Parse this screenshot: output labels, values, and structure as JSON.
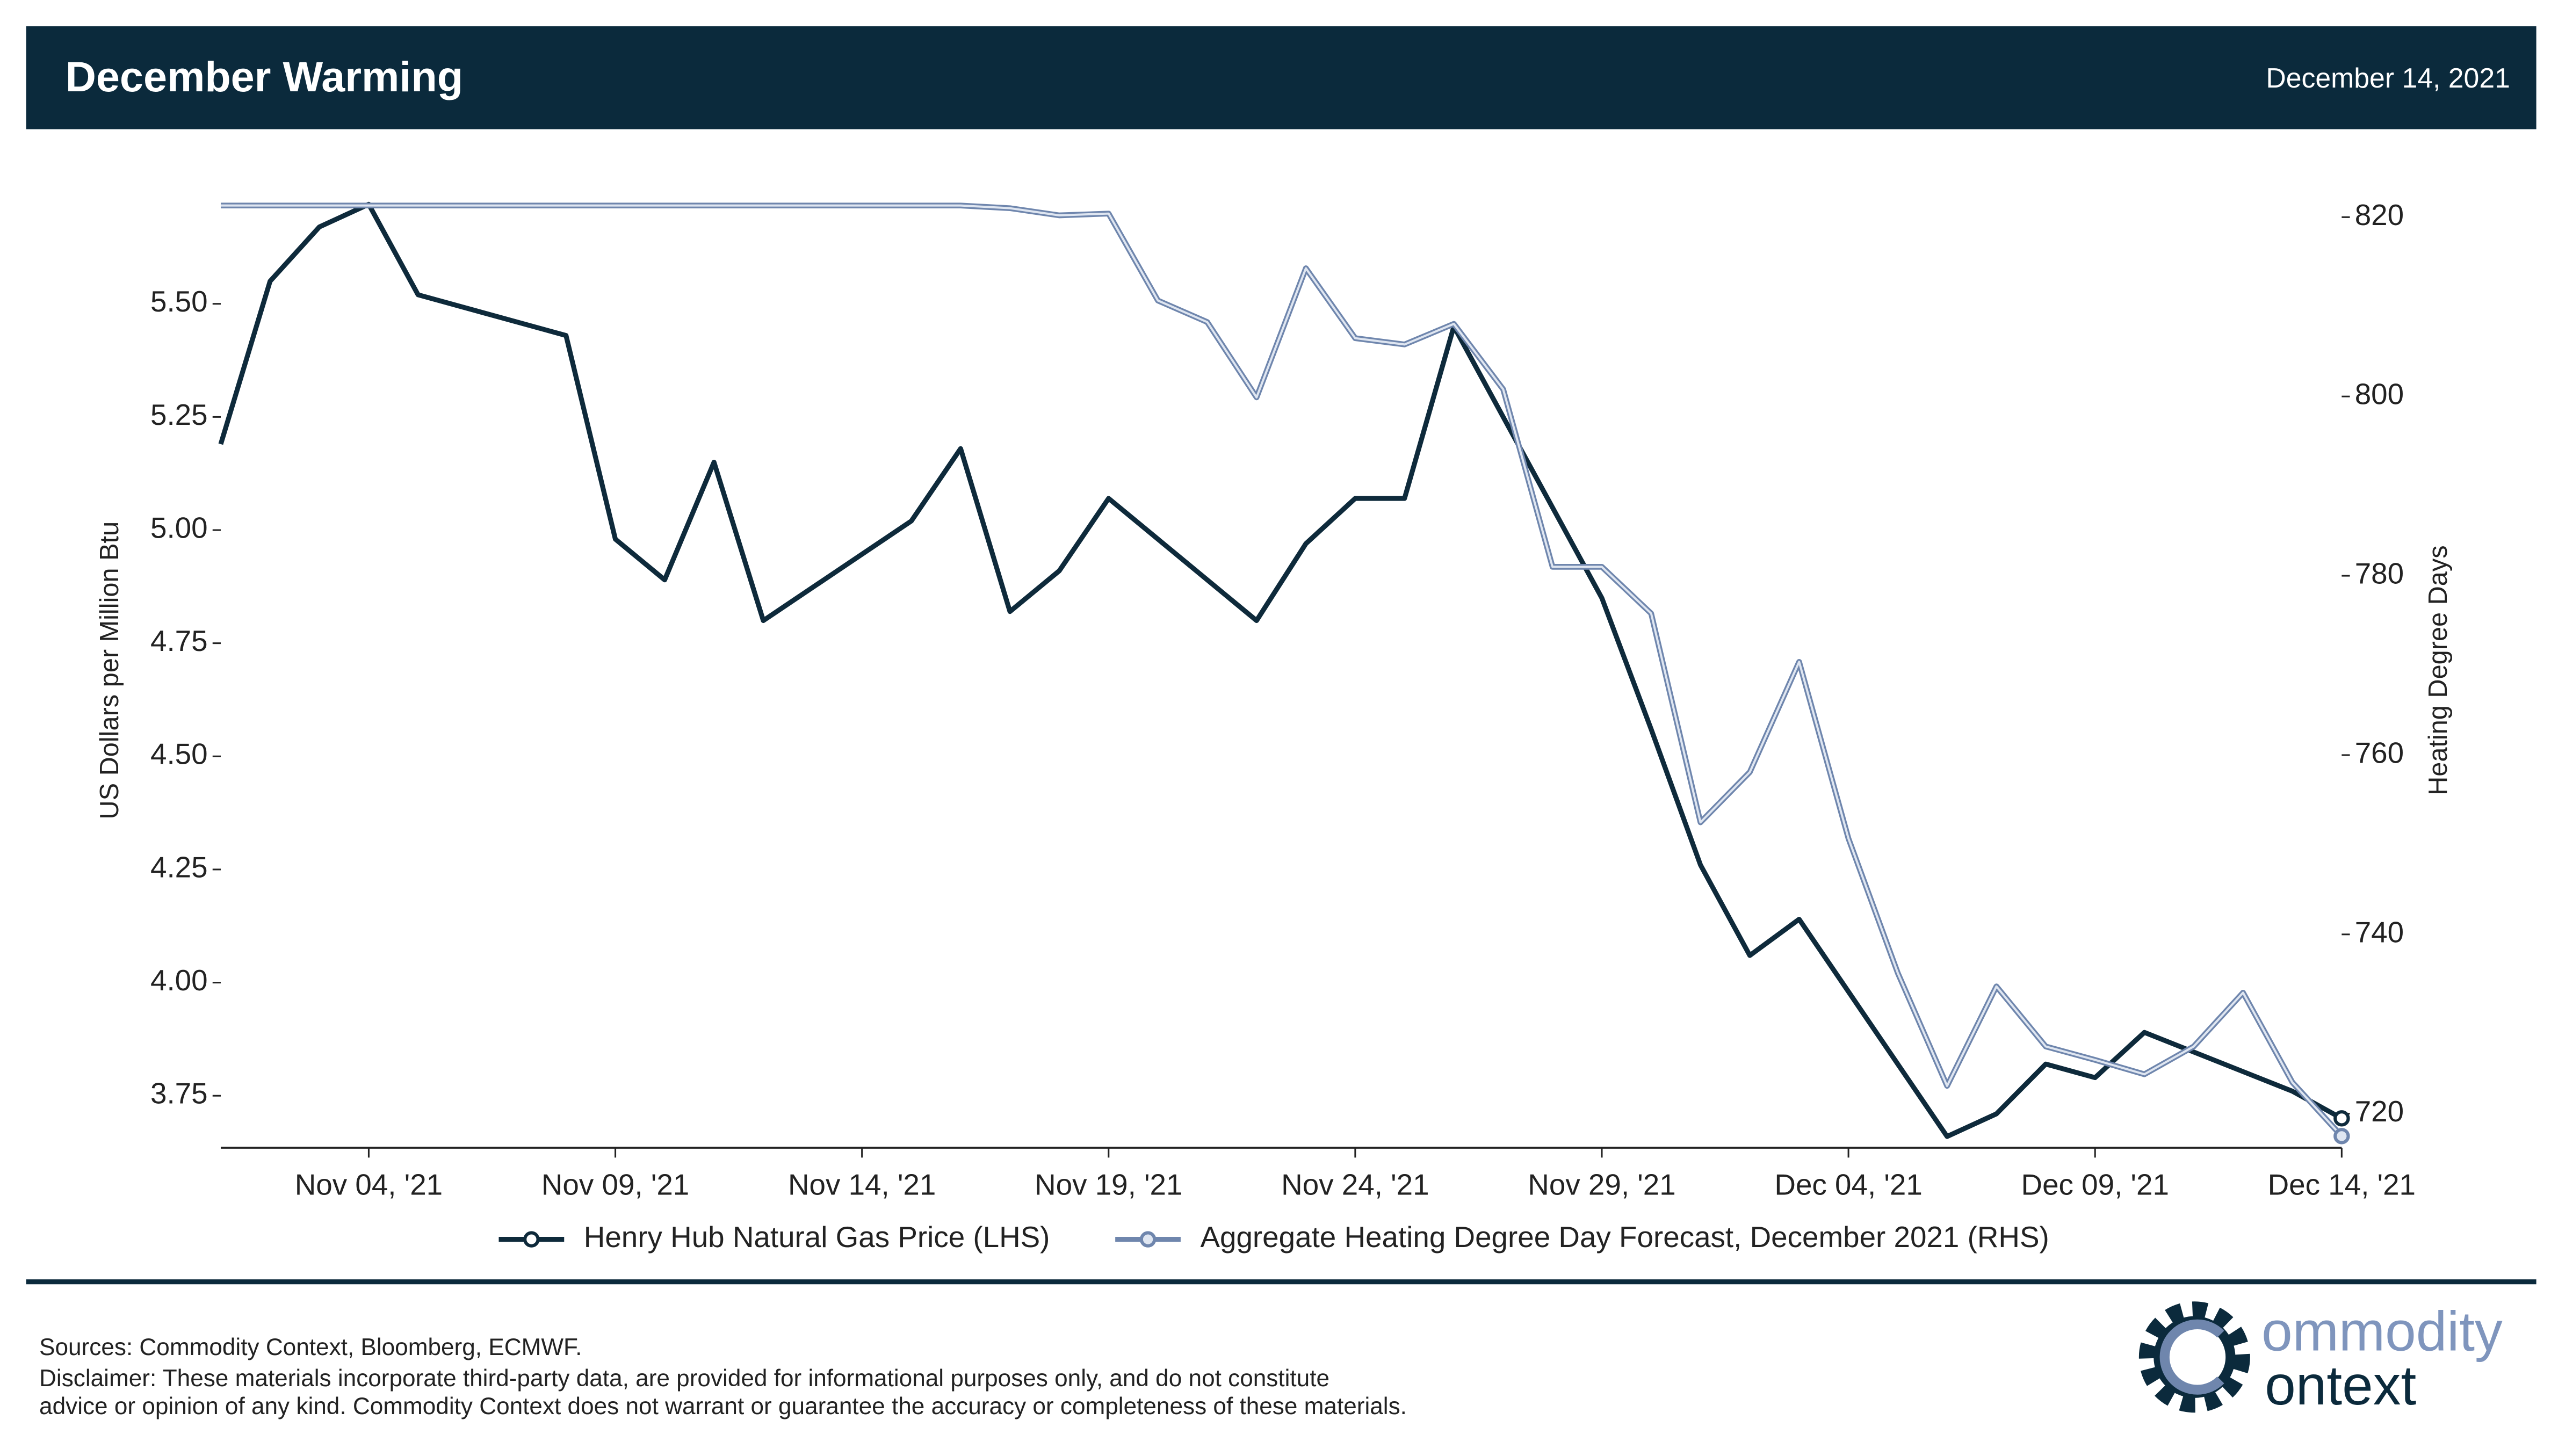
{
  "header": {
    "title": "December Warming",
    "date": "December 14, 2021"
  },
  "chart_data": {
    "type": "line",
    "xlim": [
      "2021-11-01",
      "2021-12-14"
    ],
    "xticks": [
      {
        "value": "2021-11-04",
        "label": "Nov 04, '21"
      },
      {
        "value": "2021-11-09",
        "label": "Nov 09, '21"
      },
      {
        "value": "2021-11-14",
        "label": "Nov 14, '21"
      },
      {
        "value": "2021-11-19",
        "label": "Nov 19, '21"
      },
      {
        "value": "2021-11-24",
        "label": "Nov 24, '21"
      },
      {
        "value": "2021-11-29",
        "label": "Nov 29, '21"
      },
      {
        "value": "2021-12-04",
        "label": "Dec 04, '21"
      },
      {
        "value": "2021-12-09",
        "label": "Dec 09, '21"
      },
      {
        "value": "2021-12-14",
        "label": "Dec 14, '21"
      }
    ],
    "ylabel": "US Dollars per Million Btu",
    "ylim": [
      3.635,
      5.745
    ],
    "yticks": [
      3.75,
      {
        "value": 4,
        "label": "4.00"
      },
      4.25,
      {
        "value": 4.5,
        "label": "4.50"
      },
      4.75,
      {
        "value": 5,
        "label": "5.00"
      },
      5.25,
      {
        "value": 5.5,
        "label": "5.50"
      }
    ],
    "y2label": "Heating Degree Days",
    "y2lim": [
      716.2,
      822.7
    ],
    "y2ticks": [
      720,
      740,
      760,
      780,
      800,
      820
    ],
    "series": [
      {
        "name": "Henry Hub Natural Gas Price (LHS)",
        "color": "#0e2a3b",
        "x": [
          "2021-11-01",
          "2021-11-02",
          "2021-11-03",
          "2021-11-04",
          "2021-11-05",
          "2021-11-08",
          "2021-11-09",
          "2021-11-10",
          "2021-11-11",
          "2021-11-12",
          "2021-11-15",
          "2021-11-16",
          "2021-11-17",
          "2021-11-18",
          "2021-11-19",
          "2021-11-22",
          "2021-11-23",
          "2021-11-24",
          "2021-11-25",
          "2021-11-26",
          "2021-11-29",
          "2021-11-30",
          "2021-12-01",
          "2021-12-02",
          "2021-12-03",
          "2021-12-06",
          "2021-12-07",
          "2021-12-08",
          "2021-12-09",
          "2021-12-10",
          "2021-12-13",
          "2021-12-14"
        ],
        "values": [
          5.19,
          5.55,
          5.67,
          5.72,
          5.52,
          5.43,
          4.98,
          4.89,
          5.15,
          4.8,
          5.02,
          5.18,
          4.82,
          4.91,
          5.07,
          4.8,
          4.97,
          5.07,
          5.07,
          5.45,
          4.85,
          4.56,
          4.26,
          4.06,
          4.14,
          3.66,
          3.71,
          3.82,
          3.79,
          3.89,
          3.76,
          3.7
        ]
      },
      {
        "name": "Aggregate Heating Degree Day Forecast, December 2021 (RHS)",
        "color": "#8ea2c4",
        "axis": "y2",
        "x": [
          "2021-11-01",
          "2021-11-02",
          "2021-11-03",
          "2021-11-04",
          "2021-11-05",
          "2021-11-06",
          "2021-11-07",
          "2021-11-08",
          "2021-11-09",
          "2021-11-10",
          "2021-11-11",
          "2021-11-12",
          "2021-11-13",
          "2021-11-14",
          "2021-11-15",
          "2021-11-16",
          "2021-11-17",
          "2021-11-18",
          "2021-11-19",
          "2021-11-20",
          "2021-11-21",
          "2021-11-22",
          "2021-11-23",
          "2021-11-24",
          "2021-11-25",
          "2021-11-26",
          "2021-11-27",
          "2021-11-28",
          "2021-11-29",
          "2021-11-30",
          "2021-12-01",
          "2021-12-02",
          "2021-12-03",
          "2021-12-04",
          "2021-12-05",
          "2021-12-06",
          "2021-12-07",
          "2021-12-08",
          "2021-12-09",
          "2021-12-10",
          "2021-12-11",
          "2021-12-12",
          "2021-12-13",
          "2021-12-14"
        ],
        "values": [
          821.3,
          821.3,
          821.3,
          821.3,
          821.3,
          821.3,
          821.3,
          821.3,
          821.3,
          821.3,
          821.3,
          821.3,
          821.3,
          821.3,
          821.3,
          821.3,
          821.0,
          820.2,
          820.4,
          810.7,
          808.3,
          799.9,
          814.3,
          806.5,
          805.8,
          808.1,
          800.8,
          781.0,
          781.0,
          775.8,
          752.5,
          758.1,
          770.4,
          750.7,
          735.7,
          723.1,
          734.2,
          727.5,
          726.0,
          724.4,
          727.5,
          733.5,
          723.5,
          717.5
        ]
      }
    ]
  },
  "footer": {
    "sources": "Sources: Commodity Context, Bloomberg, ECMWF.",
    "disclaimer": [
      "Disclaimer: These materials incorporate third-party data, are provided for informational purposes only, and do not constitute",
      "advice or opinion of any kind. Commodity Context does not warrant or guarantee the accuracy or completeness of these materials."
    ],
    "logo": [
      "ommodity",
      "ontext"
    ]
  }
}
